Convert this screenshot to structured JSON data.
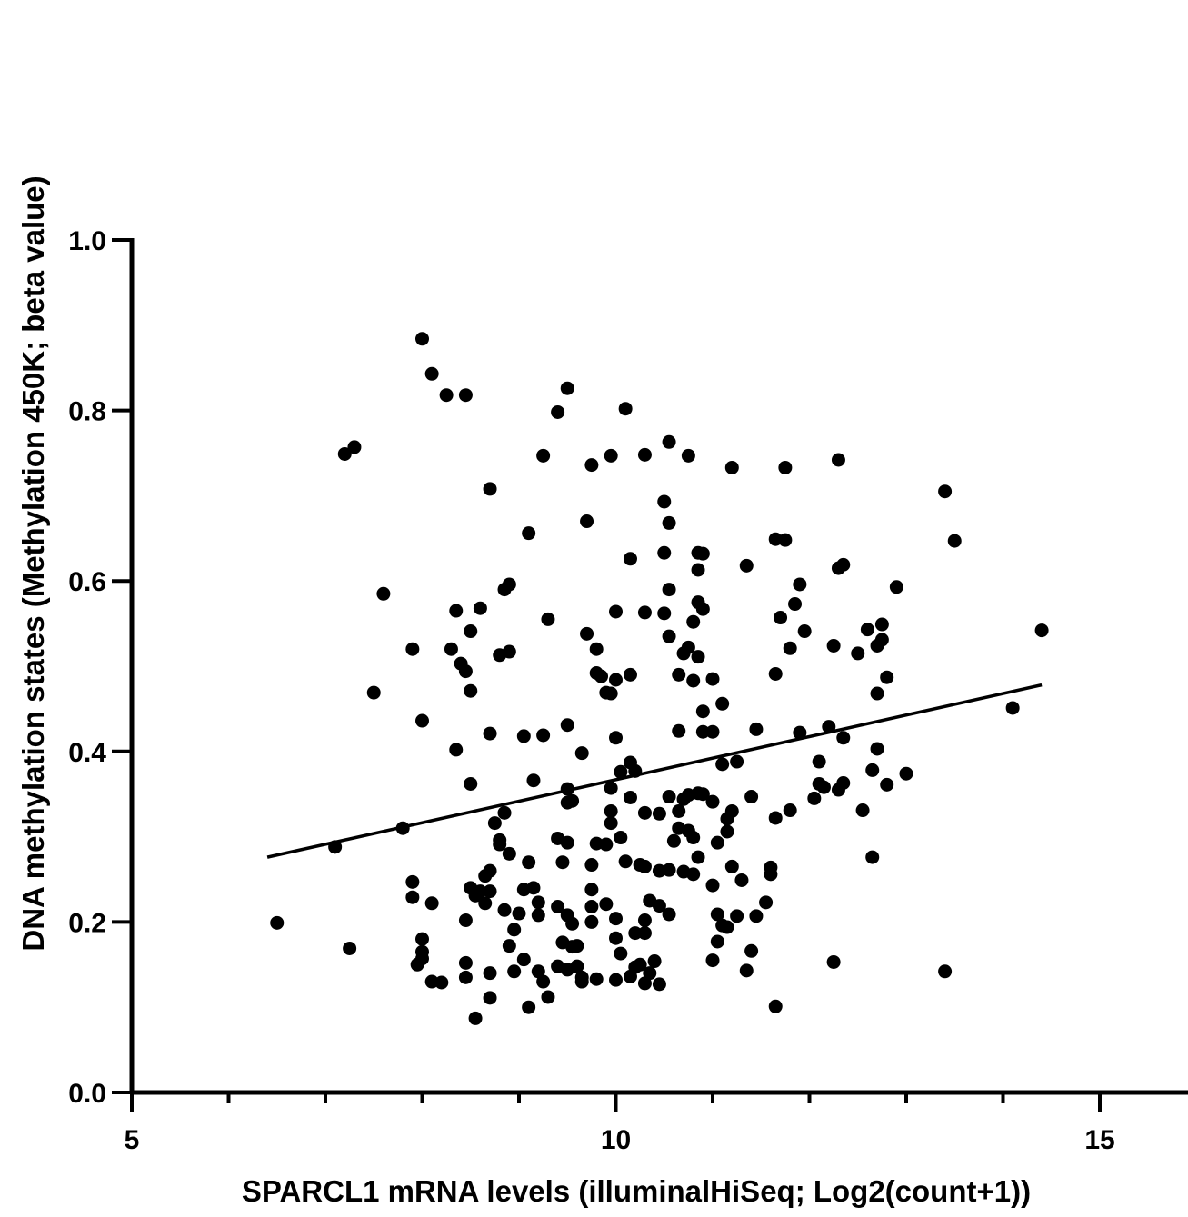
{
  "chart_data": {
    "type": "scatter",
    "xlabel": "SPARCL1 mRNA levels (illuminalHiSeq; Log2(count+1))",
    "ylabel": "DNA methylation states (Methylation 450K; beta value)",
    "xlim": [
      5,
      16
    ],
    "ylim": [
      0,
      1
    ],
    "x_ticks": [
      {
        "value": 5,
        "label": "5"
      },
      {
        "value": 10,
        "label": "10"
      },
      {
        "value": 15,
        "label": "15"
      }
    ],
    "x_minor_ticks": [
      6,
      7,
      8,
      9,
      11,
      12,
      13,
      14
    ],
    "y_ticks": [
      {
        "value": 0.0,
        "label": "0.0"
      },
      {
        "value": 0.2,
        "label": "0.2"
      },
      {
        "value": 0.4,
        "label": "0.4"
      },
      {
        "value": 0.6,
        "label": "0.6"
      },
      {
        "value": 0.8,
        "label": "0.8"
      },
      {
        "value": 1.0,
        "label": "1.0"
      }
    ],
    "grid": false,
    "point_color": "#000000",
    "trend_line": {
      "x": [
        6.4,
        14.4
      ],
      "y": [
        0.276,
        0.478
      ]
    },
    "points": [
      [
        8.0,
        0.884
      ],
      [
        8.1,
        0.843
      ],
      [
        8.25,
        0.818
      ],
      [
        8.45,
        0.818
      ],
      [
        9.5,
        0.826
      ],
      [
        9.4,
        0.798
      ],
      [
        10.1,
        0.802
      ],
      [
        7.2,
        0.749
      ],
      [
        7.3,
        0.757
      ],
      [
        9.25,
        0.747
      ],
      [
        9.75,
        0.736
      ],
      [
        9.95,
        0.747
      ],
      [
        10.3,
        0.748
      ],
      [
        10.55,
        0.763
      ],
      [
        10.75,
        0.747
      ],
      [
        11.2,
        0.733
      ],
      [
        11.75,
        0.733
      ],
      [
        12.3,
        0.742
      ],
      [
        13.4,
        0.705
      ],
      [
        8.7,
        0.708
      ],
      [
        10.5,
        0.693
      ],
      [
        9.7,
        0.67
      ],
      [
        10.55,
        0.668
      ],
      [
        9.1,
        0.656
      ],
      [
        11.65,
        0.649
      ],
      [
        11.75,
        0.648
      ],
      [
        13.5,
        0.647
      ],
      [
        10.5,
        0.633
      ],
      [
        10.85,
        0.633
      ],
      [
        10.9,
        0.632
      ],
      [
        10.15,
        0.626
      ],
      [
        12.3,
        0.615
      ],
      [
        12.35,
        0.619
      ],
      [
        11.35,
        0.618
      ],
      [
        10.85,
        0.613
      ],
      [
        7.6,
        0.585
      ],
      [
        8.85,
        0.59
      ],
      [
        8.9,
        0.596
      ],
      [
        10.55,
        0.59
      ],
      [
        11.9,
        0.596
      ],
      [
        12.9,
        0.593
      ],
      [
        10.85,
        0.575
      ],
      [
        11.85,
        0.573
      ],
      [
        8.6,
        0.568
      ],
      [
        8.35,
        0.565
      ],
      [
        10.0,
        0.564
      ],
      [
        10.3,
        0.563
      ],
      [
        10.5,
        0.562
      ],
      [
        10.9,
        0.567
      ],
      [
        9.3,
        0.555
      ],
      [
        11.7,
        0.557
      ],
      [
        10.8,
        0.552
      ],
      [
        12.75,
        0.549
      ],
      [
        8.5,
        0.541
      ],
      [
        9.7,
        0.538
      ],
      [
        10.55,
        0.535
      ],
      [
        11.95,
        0.541
      ],
      [
        12.6,
        0.543
      ],
      [
        14.4,
        0.542
      ],
      [
        12.75,
        0.531
      ],
      [
        7.9,
        0.52
      ],
      [
        8.3,
        0.52
      ],
      [
        8.8,
        0.513
      ],
      [
        8.9,
        0.517
      ],
      [
        9.8,
        0.52
      ],
      [
        10.7,
        0.515
      ],
      [
        10.75,
        0.522
      ],
      [
        11.8,
        0.521
      ],
      [
        12.25,
        0.524
      ],
      [
        12.5,
        0.515
      ],
      [
        12.7,
        0.524
      ],
      [
        8.4,
        0.503
      ],
      [
        8.45,
        0.494
      ],
      [
        10.85,
        0.511
      ],
      [
        9.8,
        0.492
      ],
      [
        9.85,
        0.488
      ],
      [
        10.0,
        0.484
      ],
      [
        10.15,
        0.49
      ],
      [
        10.65,
        0.49
      ],
      [
        10.8,
        0.483
      ],
      [
        11.0,
        0.485
      ],
      [
        11.65,
        0.491
      ],
      [
        12.8,
        0.487
      ],
      [
        7.5,
        0.469
      ],
      [
        8.5,
        0.471
      ],
      [
        9.9,
        0.469
      ],
      [
        9.95,
        0.468
      ],
      [
        12.7,
        0.468
      ],
      [
        11.1,
        0.456
      ],
      [
        14.1,
        0.451
      ],
      [
        8.0,
        0.436
      ],
      [
        10.9,
        0.447
      ],
      [
        9.5,
        0.431
      ],
      [
        8.7,
        0.421
      ],
      [
        9.05,
        0.418
      ],
      [
        9.25,
        0.419
      ],
      [
        10.0,
        0.416
      ],
      [
        10.65,
        0.424
      ],
      [
        10.9,
        0.423
      ],
      [
        11.0,
        0.423
      ],
      [
        11.45,
        0.426
      ],
      [
        11.9,
        0.422
      ],
      [
        12.2,
        0.429
      ],
      [
        12.35,
        0.416
      ],
      [
        8.35,
        0.402
      ],
      [
        9.65,
        0.398
      ],
      [
        12.7,
        0.403
      ],
      [
        10.15,
        0.387
      ],
      [
        10.05,
        0.376
      ],
      [
        10.2,
        0.377
      ],
      [
        11.1,
        0.385
      ],
      [
        11.25,
        0.388
      ],
      [
        12.1,
        0.388
      ],
      [
        12.65,
        0.378
      ],
      [
        13.0,
        0.374
      ],
      [
        9.15,
        0.366
      ],
      [
        9.5,
        0.356
      ],
      [
        8.5,
        0.362
      ],
      [
        9.95,
        0.357
      ],
      [
        12.1,
        0.362
      ],
      [
        12.15,
        0.358
      ],
      [
        12.35,
        0.363
      ],
      [
        12.8,
        0.361
      ],
      [
        9.5,
        0.34
      ],
      [
        9.55,
        0.342
      ],
      [
        10.15,
        0.346
      ],
      [
        10.55,
        0.347
      ],
      [
        10.7,
        0.344
      ],
      [
        10.75,
        0.349
      ],
      [
        10.85,
        0.351
      ],
      [
        10.9,
        0.35
      ],
      [
        11.0,
        0.341
      ],
      [
        11.4,
        0.347
      ],
      [
        12.05,
        0.345
      ],
      [
        12.3,
        0.355
      ],
      [
        9.95,
        0.33
      ],
      [
        10.3,
        0.328
      ],
      [
        10.45,
        0.327
      ],
      [
        10.65,
        0.33
      ],
      [
        11.2,
        0.33
      ],
      [
        11.65,
        0.322
      ],
      [
        11.8,
        0.331
      ],
      [
        12.55,
        0.331
      ],
      [
        7.8,
        0.31
      ],
      [
        8.75,
        0.316
      ],
      [
        8.85,
        0.328
      ],
      [
        9.95,
        0.316
      ],
      [
        10.65,
        0.31
      ],
      [
        10.75,
        0.307
      ],
      [
        11.15,
        0.321
      ],
      [
        11.15,
        0.306
      ],
      [
        8.8,
        0.296
      ],
      [
        8.8,
        0.291
      ],
      [
        9.4,
        0.298
      ],
      [
        9.5,
        0.293
      ],
      [
        9.8,
        0.292
      ],
      [
        9.9,
        0.291
      ],
      [
        10.05,
        0.299
      ],
      [
        10.6,
        0.295
      ],
      [
        10.8,
        0.299
      ],
      [
        11.05,
        0.293
      ],
      [
        7.1,
        0.288
      ],
      [
        8.9,
        0.28
      ],
      [
        9.1,
        0.27
      ],
      [
        9.45,
        0.27
      ],
      [
        9.75,
        0.267
      ],
      [
        10.1,
        0.271
      ],
      [
        10.25,
        0.267
      ],
      [
        10.3,
        0.265
      ],
      [
        10.45,
        0.26
      ],
      [
        10.55,
        0.261
      ],
      [
        10.7,
        0.259
      ],
      [
        10.8,
        0.256
      ],
      [
        10.85,
        0.276
      ],
      [
        11.2,
        0.265
      ],
      [
        11.6,
        0.264
      ],
      [
        12.65,
        0.276
      ],
      [
        8.65,
        0.254
      ],
      [
        8.7,
        0.26
      ],
      [
        7.9,
        0.247
      ],
      [
        8.6,
        0.236
      ],
      [
        8.5,
        0.24
      ],
      [
        8.7,
        0.236
      ],
      [
        8.65,
        0.222
      ],
      [
        8.55,
        0.231
      ],
      [
        9.05,
        0.238
      ],
      [
        9.15,
        0.24
      ],
      [
        9.75,
        0.238
      ],
      [
        10.45,
        0.219
      ],
      [
        11.0,
        0.243
      ],
      [
        11.3,
        0.249
      ],
      [
        11.6,
        0.256
      ],
      [
        7.9,
        0.229
      ],
      [
        8.1,
        0.222
      ],
      [
        8.45,
        0.202
      ],
      [
        8.85,
        0.214
      ],
      [
        9.0,
        0.21
      ],
      [
        9.2,
        0.223
      ],
      [
        9.4,
        0.218
      ],
      [
        9.5,
        0.208
      ],
      [
        9.75,
        0.218
      ],
      [
        9.9,
        0.221
      ],
      [
        10.0,
        0.204
      ],
      [
        10.3,
        0.202
      ],
      [
        10.35,
        0.225
      ],
      [
        10.55,
        0.209
      ],
      [
        11.05,
        0.209
      ],
      [
        11.25,
        0.207
      ],
      [
        11.55,
        0.223
      ],
      [
        8.9,
        0.172
      ],
      [
        8.95,
        0.191
      ],
      [
        9.2,
        0.208
      ],
      [
        9.55,
        0.198
      ],
      [
        9.75,
        0.2
      ],
      [
        10.0,
        0.181
      ],
      [
        10.2,
        0.187
      ],
      [
        10.3,
        0.187
      ],
      [
        11.1,
        0.196
      ],
      [
        11.15,
        0.194
      ],
      [
        11.45,
        0.207
      ],
      [
        6.5,
        0.199
      ],
      [
        8.0,
        0.18
      ],
      [
        7.25,
        0.169
      ],
      [
        8.0,
        0.165
      ],
      [
        9.45,
        0.176
      ],
      [
        9.55,
        0.171
      ],
      [
        9.6,
        0.172
      ],
      [
        10.05,
        0.163
      ],
      [
        11.0,
        0.155
      ],
      [
        11.05,
        0.177
      ],
      [
        11.35,
        0.143
      ],
      [
        11.4,
        0.166
      ],
      [
        7.95,
        0.15
      ],
      [
        8.0,
        0.157
      ],
      [
        8.1,
        0.13
      ],
      [
        8.2,
        0.129
      ],
      [
        8.45,
        0.152
      ],
      [
        8.45,
        0.135
      ],
      [
        8.7,
        0.14
      ],
      [
        8.95,
        0.142
      ],
      [
        9.05,
        0.156
      ],
      [
        9.2,
        0.142
      ],
      [
        9.25,
        0.13
      ],
      [
        9.5,
        0.144
      ],
      [
        9.6,
        0.148
      ],
      [
        9.65,
        0.135
      ],
      [
        9.65,
        0.13
      ],
      [
        9.8,
        0.133
      ],
      [
        10.0,
        0.132
      ],
      [
        10.15,
        0.136
      ],
      [
        10.2,
        0.147
      ],
      [
        10.25,
        0.15
      ],
      [
        10.3,
        0.128
      ],
      [
        10.35,
        0.14
      ],
      [
        10.4,
        0.154
      ],
      [
        10.45,
        0.127
      ],
      [
        12.25,
        0.153
      ],
      [
        13.4,
        0.142
      ],
      [
        8.7,
        0.111
      ],
      [
        9.1,
        0.1
      ],
      [
        9.3,
        0.112
      ],
      [
        9.4,
        0.148
      ],
      [
        11.65,
        0.101
      ],
      [
        8.55,
        0.087
      ]
    ]
  }
}
